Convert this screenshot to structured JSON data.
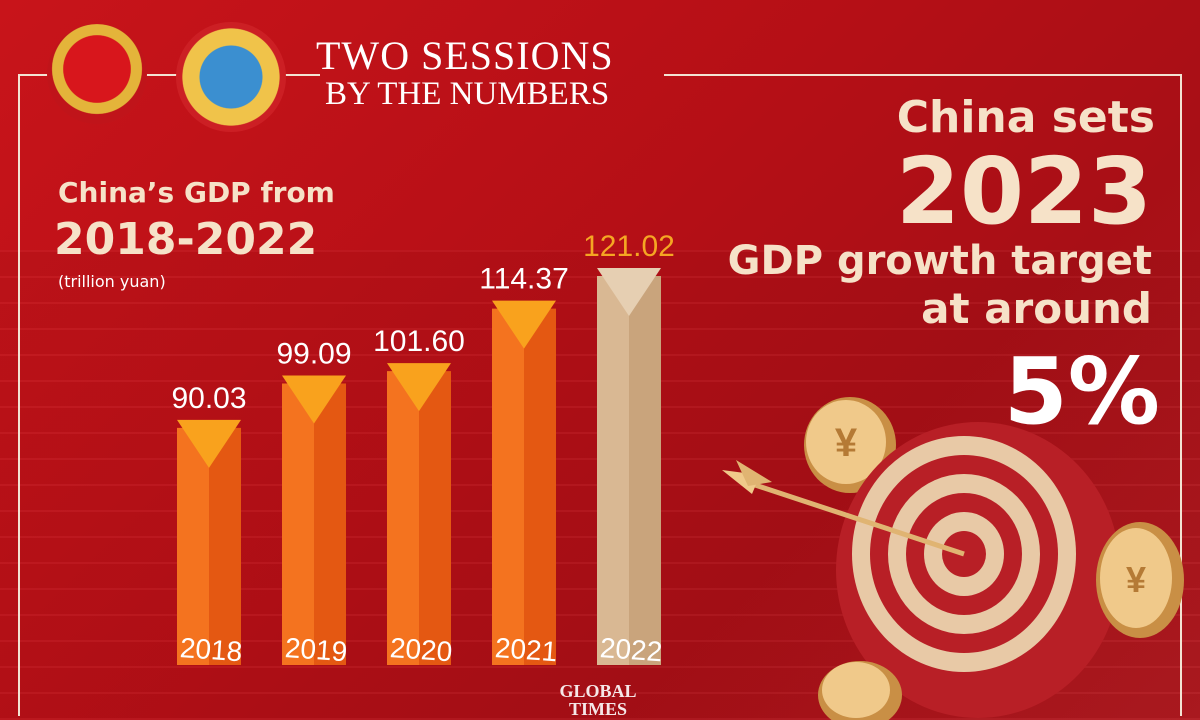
{
  "header": {
    "title_line1": "TWO SESSIONS",
    "title_line2": "BY THE NUMBERS"
  },
  "chart_heading": {
    "line1": "China’s GDP from",
    "line2": "2018-2022",
    "unit": "(trillion yuan)"
  },
  "headline": {
    "line1": "China sets",
    "year": "2023",
    "line3": "GDP growth target",
    "line4": "at around",
    "value": "5%"
  },
  "logo": {
    "text": "GLOBAL TIMES"
  },
  "colors": {
    "background": "#c8141a",
    "bar_orange": "#f26a1b",
    "bar_highlight": "#e8c9a6",
    "value_label_highlight": "#f5a623",
    "text_cream": "#f6e2c8"
  },
  "icons": {
    "left_emblem": "national-emblem-icon",
    "right_emblem": "cppcc-emblem-icon",
    "target": "dartboard-arrow-icon",
    "coin": "yuan-coin-icon"
  },
  "chart_data": {
    "type": "bar",
    "categories": [
      "2018",
      "2019",
      "2020",
      "2021",
      "2022"
    ],
    "values": [
      90.03,
      99.09,
      101.6,
      114.37,
      121.02
    ],
    "value_labels": [
      "90.03",
      "99.09",
      "101.60",
      "114.37",
      "121.02"
    ],
    "title": "China’s GDP from 2018-2022",
    "ylabel": "(trillion yuan)",
    "highlight_category": "2022",
    "grid": false
  }
}
